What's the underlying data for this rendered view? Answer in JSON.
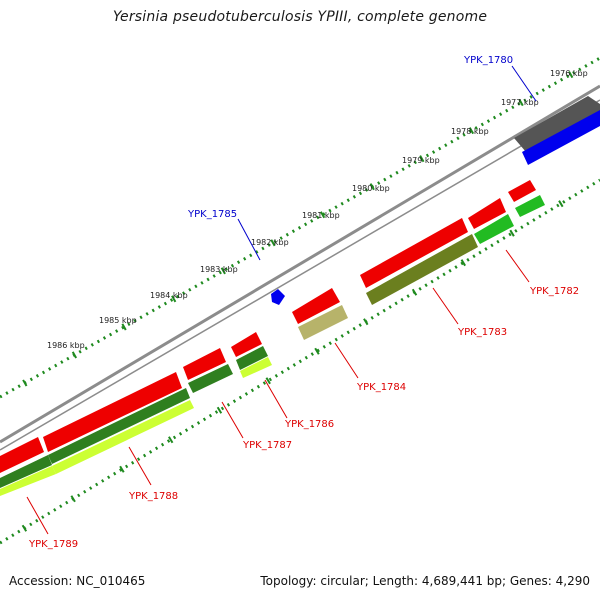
{
  "title": "Yersinia pseudotuberculosis YPIII, complete genome",
  "accession": "Accession: NC_010465",
  "summary": "Topology: circular; Length: 4,689,441 bp; Genes: 4,290",
  "colors": {
    "backbone": "#8c8c8c",
    "tick": "#1f8a1f",
    "tick_label": "#222222",
    "label_plus": "#0000cc",
    "label_minus": "#dd0000",
    "cds_plus": "#0000ee",
    "cds_minus": "#ee0000",
    "gene_dark": "#555555",
    "gene_dark_green": "#2f7f1f",
    "gene_green": "#22bb22",
    "gene_light_green": "#ccff33",
    "gene_olive": "#6b7f1f",
    "gene_khaki": "#b7b36a"
  },
  "tick_labels": [
    "1976 kbp",
    "1977 kbp",
    "1978 kbp",
    "1979 kbp",
    "1980 kbp",
    "1981 kbp",
    "1982 kbp",
    "1983 kbp",
    "1984 kbp",
    "1985 kbp",
    "1986 kbp"
  ],
  "genes": [
    {
      "id": "YPK_1780",
      "strand": "plus"
    },
    {
      "id": "YPK_1782",
      "strand": "minus"
    },
    {
      "id": "YPK_1783",
      "strand": "minus"
    },
    {
      "id": "YPK_1784",
      "strand": "minus"
    },
    {
      "id": "YPK_1785",
      "strand": "plus"
    },
    {
      "id": "YPK_1786",
      "strand": "minus"
    },
    {
      "id": "YPK_1787",
      "strand": "minus"
    },
    {
      "id": "YPK_1788",
      "strand": "minus"
    },
    {
      "id": "YPK_1789",
      "strand": "minus"
    }
  ]
}
